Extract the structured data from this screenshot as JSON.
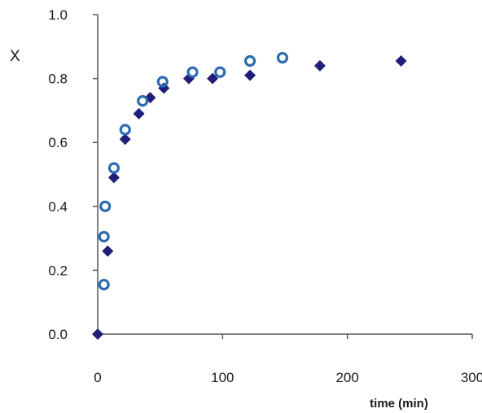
{
  "chart_data": {
    "type": "scatter",
    "title": "",
    "xlabel": "time (min)",
    "ylabel": "X",
    "xlim": [
      0,
      300
    ],
    "ylim": [
      0,
      1.0
    ],
    "x_ticks": [
      "0",
      "100",
      "200",
      "300"
    ],
    "y_ticks": [
      "0.0",
      "0.2",
      "0.4",
      "0.6",
      "0.8",
      "1.0"
    ],
    "grid": false,
    "series": [
      {
        "marker": "diamond",
        "color": "#1f1f7a",
        "points": [
          [
            0,
            0.0
          ],
          [
            8,
            0.26
          ],
          [
            13,
            0.49
          ],
          [
            22,
            0.61
          ],
          [
            33,
            0.69
          ],
          [
            42,
            0.74
          ],
          [
            53,
            0.77
          ],
          [
            73,
            0.8
          ],
          [
            92,
            0.8
          ],
          [
            122,
            0.81
          ],
          [
            178,
            0.84
          ],
          [
            243,
            0.855
          ]
        ]
      },
      {
        "marker": "open-circle",
        "color": "#2c6bb0",
        "points": [
          [
            5,
            0.155
          ],
          [
            5,
            0.305
          ],
          [
            6,
            0.4
          ],
          [
            13,
            0.52
          ],
          [
            22,
            0.64
          ],
          [
            36,
            0.73
          ],
          [
            52,
            0.79
          ],
          [
            76,
            0.82
          ],
          [
            98,
            0.82
          ],
          [
            122,
            0.855
          ],
          [
            148,
            0.865
          ]
        ]
      }
    ]
  }
}
